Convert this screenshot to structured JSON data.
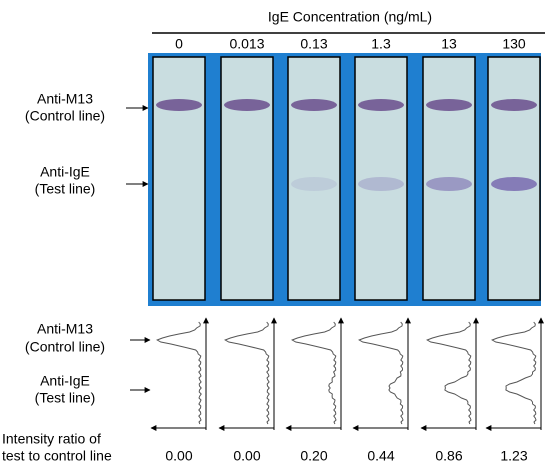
{
  "header": {
    "title": "IgE Concentration (ng/mL)",
    "concentrations": [
      "0",
      "0.013",
      "0.13",
      "1.3",
      "13",
      "130"
    ]
  },
  "labels": {
    "control": [
      "Anti-M13",
      "(Control line)"
    ],
    "test": [
      "Anti-IgE",
      "(Test line)"
    ]
  },
  "ratio": {
    "label": [
      "Intensity ratio of",
      "test to control line"
    ],
    "values": [
      "0.00",
      "0.00",
      "0.20",
      "0.44",
      "0.86",
      "1.23"
    ]
  }
}
